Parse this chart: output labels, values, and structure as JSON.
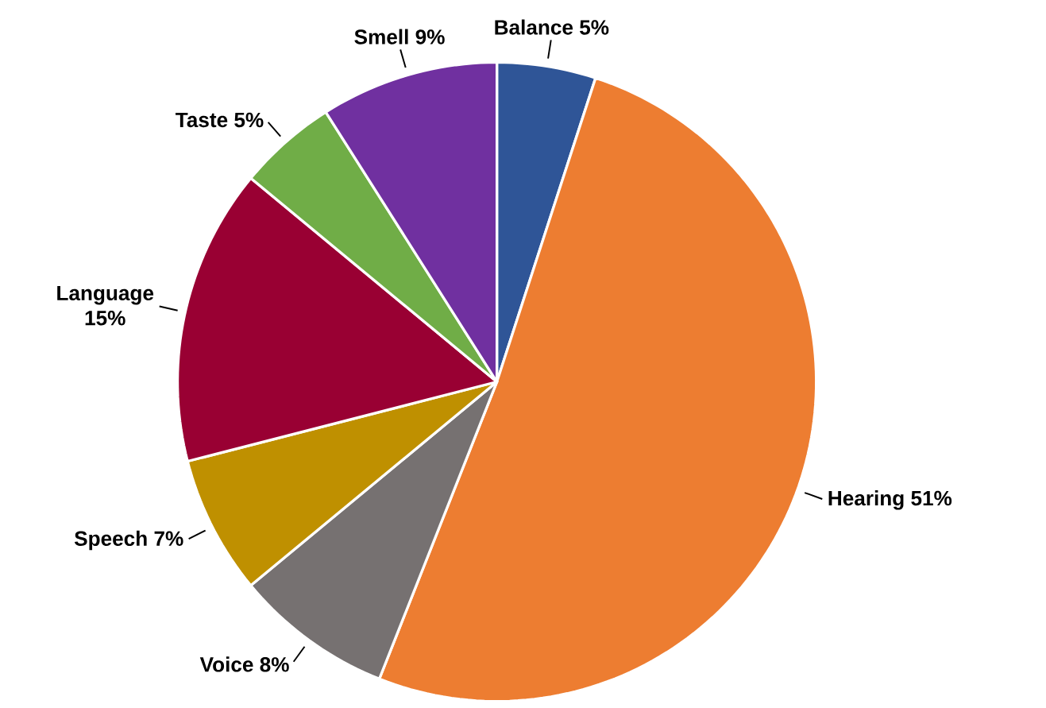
{
  "chart_data": {
    "type": "pie",
    "categories": [
      "Balance",
      "Hearing",
      "Voice",
      "Speech",
      "Language",
      "Taste",
      "Smell"
    ],
    "values": [
      5,
      51,
      8,
      7,
      15,
      5,
      9
    ],
    "value_labels": [
      "5%",
      "51%",
      "8%",
      "7%",
      "15%",
      "5%",
      "9%"
    ],
    "colors": [
      "#2f5597",
      "#ed7d31",
      "#767171",
      "#bf9000",
      "#990033",
      "#70ad47",
      "#7030a0"
    ],
    "legend": false
  }
}
